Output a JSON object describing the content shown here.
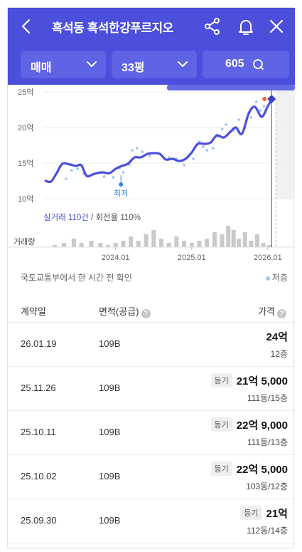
{
  "header": {
    "title": "흑석동 흑석한강푸르지오",
    "filters": {
      "trade_type": "매매",
      "size": "33평",
      "count": "605"
    }
  },
  "chart_data": {
    "type": "line",
    "title": "",
    "ylabel": "",
    "xlabel": "",
    "y_unit": "억",
    "y_ticks": [
      "25억",
      "20억",
      "15억",
      "10억"
    ],
    "y_tick_values": [
      25,
      20,
      15,
      10
    ],
    "ylim": [
      10,
      25
    ],
    "x_ticks": [
      "2024.01",
      "2025.01",
      "2026.01"
    ],
    "x_tick_values": [
      2024.0,
      2025.0,
      2026.0
    ],
    "xlim": [
      2023.05,
      2026.3
    ],
    "grid": true,
    "series": [
      {
        "kind": "trend",
        "color": "#4b4fdc",
        "x": [
          2023.08,
          2023.15,
          2023.22,
          2023.3,
          2023.4,
          2023.48,
          2023.55,
          2023.62,
          2023.72,
          2023.82,
          2023.92,
          2024.0,
          2024.08,
          2024.16,
          2024.25,
          2024.33,
          2024.42,
          2024.5,
          2024.58,
          2024.66,
          2024.75,
          2024.83,
          2024.92,
          2025.0,
          2025.08,
          2025.17,
          2025.25,
          2025.33,
          2025.42,
          2025.5,
          2025.58,
          2025.66,
          2025.75,
          2025.83,
          2025.92,
          2026.0,
          2026.05
        ],
        "y": [
          12.5,
          12.4,
          13.5,
          14.9,
          14.8,
          14.6,
          14.7,
          13.2,
          13.5,
          13.7,
          13.6,
          14.2,
          14.6,
          14.9,
          15.8,
          15.8,
          16.3,
          16.4,
          16.3,
          15.5,
          15.6,
          15.3,
          15.6,
          16.5,
          17.7,
          17.7,
          17.9,
          18.9,
          18.6,
          19.3,
          20.0,
          19.1,
          22.0,
          22.9,
          21.5,
          23.0,
          23.9
        ]
      }
    ],
    "scatter": {
      "color": "#9cc3ef",
      "x": [
        2023.35,
        2023.42,
        2023.5,
        2023.58,
        2023.68,
        2023.76,
        2023.85,
        2023.9,
        2023.97,
        2024.05,
        2024.1,
        2024.18,
        2024.22,
        2024.28,
        2024.35,
        2024.45,
        2024.58,
        2024.7,
        2024.8,
        2024.9,
        2025.02,
        2025.1,
        2025.15,
        2025.2,
        2025.28,
        2025.35,
        2025.4,
        2025.45,
        2025.5,
        2025.55,
        2025.62,
        2025.7,
        2025.78,
        2025.85,
        2025.9,
        2025.95
      ],
      "y": [
        12.8,
        14.0,
        14.2,
        13.5,
        13.3,
        13.6,
        13.1,
        13.5,
        13.0,
        14.3,
        13.7,
        14.8,
        16.8,
        17.1,
        16.6,
        16.0,
        16.3,
        15.8,
        15.6,
        14.7,
        15.6,
        18.0,
        17.3,
        16.8,
        17.1,
        18.7,
        19.8,
        20.4,
        19.4,
        19.6,
        21.1,
        19.9,
        21.4,
        23.6,
        22.4,
        23.0
      ]
    },
    "min_marker": {
      "x": 2024.07,
      "y": 12.0,
      "label": "최저"
    },
    "latest_marker": {
      "x": 2026.05,
      "y": 24.0
    },
    "volume": {
      "x": [
        2023.2,
        2023.32,
        2023.45,
        2023.55,
        2023.68,
        2023.8,
        2023.9,
        2024.0,
        2024.1,
        2024.2,
        2024.3,
        2024.4,
        2024.5,
        2024.6,
        2024.7,
        2024.8,
        2024.9,
        2025.0,
        2025.1,
        2025.2,
        2025.3,
        2025.4,
        2025.48,
        2025.55,
        2025.62,
        2025.7,
        2025.78,
        2025.86,
        2025.94,
        2026.02
      ],
      "values": [
        1,
        2,
        4,
        2,
        3,
        2,
        1,
        2,
        3,
        5,
        3,
        6,
        8,
        4,
        2,
        5,
        3,
        2,
        3,
        4,
        7,
        6,
        10,
        8,
        4,
        7,
        3,
        6,
        2,
        1
      ]
    }
  },
  "summary": {
    "highlight": "실거래 110건",
    "rest": " / 회전율 110%"
  },
  "volume_label": "거래량",
  "source_text": "국토교통부에서 한 시간 전 확인",
  "legend_label": "저층",
  "table": {
    "headers": {
      "date": "계약일",
      "area": "면적(공급)",
      "price": "가격"
    },
    "rows": [
      {
        "date": "26.01.19",
        "area": "109B",
        "tag": "",
        "price": "24억",
        "floor": "12층"
      },
      {
        "date": "25.11.26",
        "area": "109B",
        "tag": "등기",
        "price": "21억 5,000",
        "floor": "111동/15층"
      },
      {
        "date": "25.10.11",
        "area": "109B",
        "tag": "등기",
        "price": "22억 9,000",
        "floor": "111동/13층"
      },
      {
        "date": "25.10.02",
        "area": "109B",
        "tag": "등기",
        "price": "22억 5,000",
        "floor": "103동/12층"
      },
      {
        "date": "25.09.30",
        "area": "109B",
        "tag": "등기",
        "price": "21억",
        "floor": "112동/14층"
      }
    ]
  }
}
